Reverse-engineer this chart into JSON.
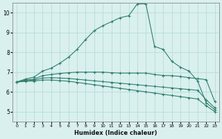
{
  "xlabel": "Humidex (Indice chaleur)",
  "ylabel": "",
  "background_color": "#d9f0ee",
  "line_color": "#2e7d6e",
  "grid_color": "#b0d8d4",
  "xlim": [
    -0.5,
    23.5
  ],
  "ylim": [
    4.5,
    10.5
  ],
  "xticks": [
    0,
    1,
    2,
    3,
    4,
    5,
    6,
    7,
    8,
    9,
    10,
    11,
    12,
    13,
    14,
    15,
    16,
    17,
    18,
    19,
    20,
    21,
    22,
    23
  ],
  "yticks": [
    5,
    6,
    7,
    8,
    9,
    10
  ],
  "series": {
    "upper": {
      "x": [
        0,
        1,
        2,
        3,
        4,
        5,
        6,
        7,
        8,
        9,
        10,
        11,
        12,
        13,
        14,
        15,
        16,
        17,
        18,
        19,
        20,
        21,
        22,
        23
      ],
      "y": [
        6.5,
        6.65,
        6.75,
        7.05,
        7.2,
        7.45,
        7.75,
        8.15,
        8.65,
        9.1,
        9.35,
        9.55,
        9.75,
        9.85,
        10.45,
        10.45,
        8.3,
        8.15,
        7.55,
        7.25,
        7.05,
        6.55,
        5.45,
        5.1
      ]
    },
    "mid_upper": {
      "x": [
        0,
        1,
        2,
        3,
        4,
        5,
        6,
        7,
        8,
        9,
        10,
        11,
        12,
        13,
        14,
        15,
        16,
        17,
        18,
        19,
        20,
        21,
        22,
        23
      ],
      "y": [
        6.5,
        6.6,
        6.65,
        6.82,
        6.88,
        6.93,
        6.97,
        7.0,
        7.0,
        7.0,
        7.0,
        6.97,
        6.95,
        6.95,
        6.95,
        6.95,
        6.88,
        6.83,
        6.82,
        6.78,
        6.72,
        6.67,
        6.62,
        5.5
      ]
    },
    "mid_lower": {
      "x": [
        0,
        1,
        2,
        3,
        4,
        5,
        6,
        7,
        8,
        9,
        10,
        11,
        12,
        13,
        14,
        15,
        16,
        17,
        18,
        19,
        20,
        21,
        22,
        23
      ],
      "y": [
        6.5,
        6.56,
        6.6,
        6.7,
        6.72,
        6.7,
        6.68,
        6.64,
        6.6,
        6.56,
        6.52,
        6.48,
        6.44,
        6.4,
        6.36,
        6.32,
        6.28,
        6.24,
        6.2,
        6.16,
        6.12,
        6.08,
        5.6,
        5.2
      ]
    },
    "lower": {
      "x": [
        0,
        1,
        2,
        3,
        4,
        5,
        6,
        7,
        8,
        9,
        10,
        11,
        12,
        13,
        14,
        15,
        16,
        17,
        18,
        19,
        20,
        21,
        22,
        23
      ],
      "y": [
        6.5,
        6.53,
        6.55,
        6.6,
        6.6,
        6.57,
        6.54,
        6.48,
        6.42,
        6.36,
        6.3,
        6.24,
        6.18,
        6.12,
        6.06,
        6.0,
        5.94,
        5.88,
        5.82,
        5.76,
        5.7,
        5.64,
        5.3,
        5.0
      ]
    }
  }
}
